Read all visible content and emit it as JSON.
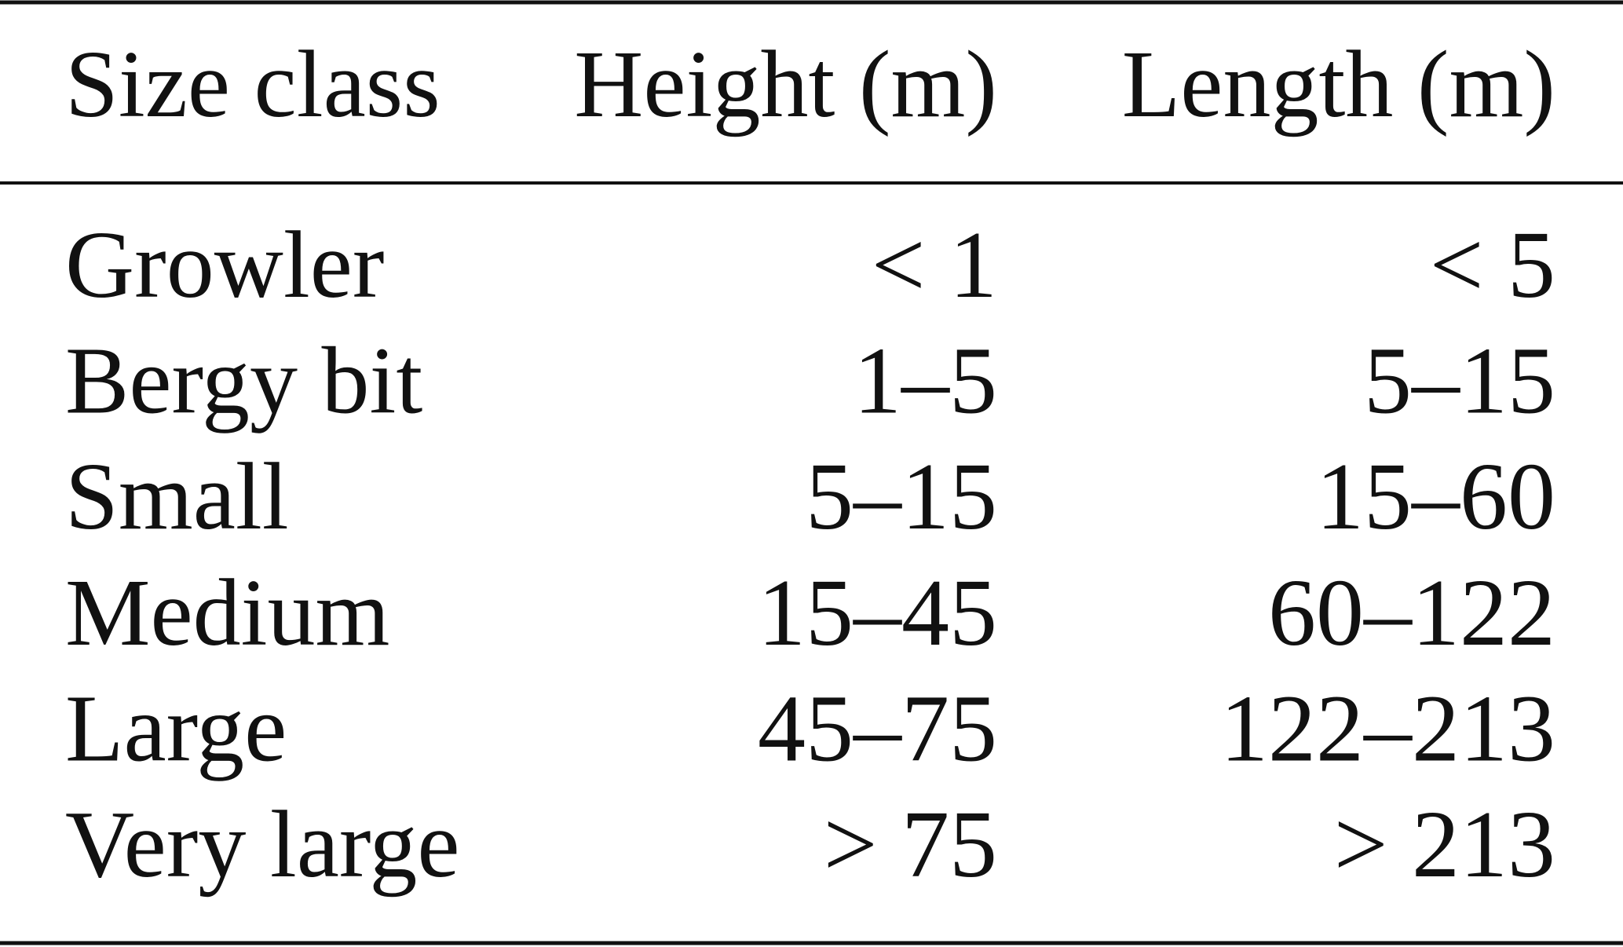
{
  "table": {
    "header": [
      "Size class",
      "Height (m)",
      "Length (m)"
    ],
    "rows": [
      [
        "Growler",
        "< 1",
        "< 5"
      ],
      [
        "Bergy bit",
        "1–5",
        "5–15"
      ],
      [
        "Small",
        "5–15",
        "15–60"
      ],
      [
        "Medium",
        "15–45",
        "60–122"
      ],
      [
        "Large",
        "45–75",
        "122–213"
      ],
      [
        "Very large",
        "> 75",
        "> 213"
      ]
    ]
  }
}
